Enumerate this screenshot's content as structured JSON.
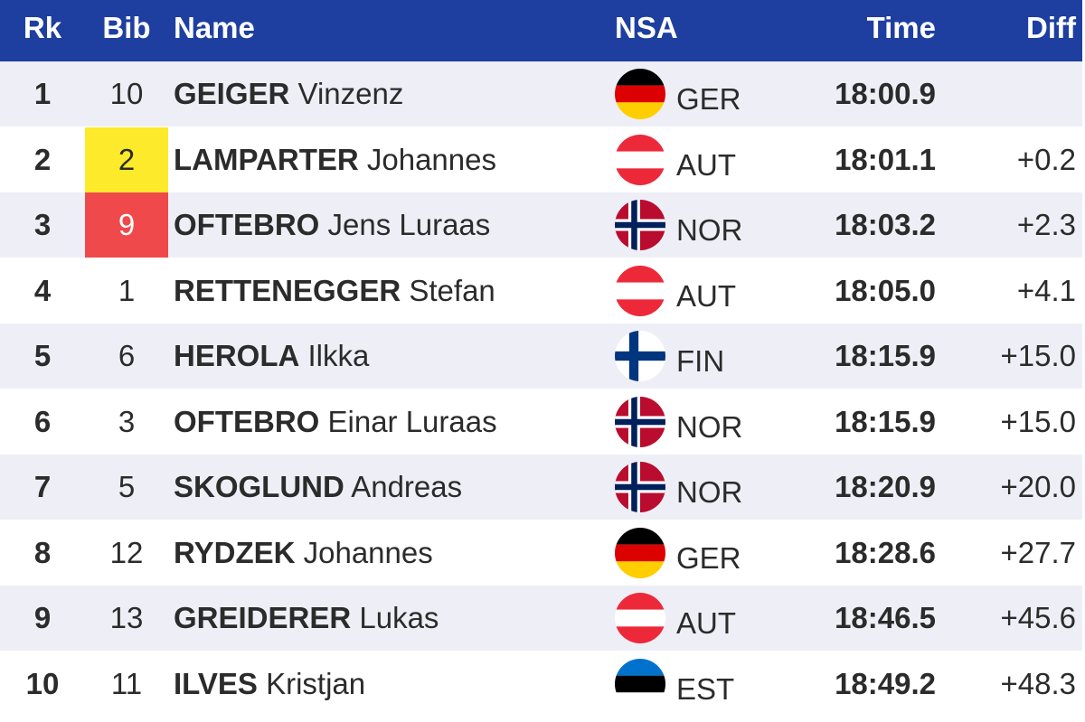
{
  "header": {
    "rk": "Rk",
    "bib": "Bib",
    "name": "Name",
    "nsa": "NSA",
    "time": "Time",
    "diff": "Diff"
  },
  "colors": {
    "header_bg": "#1e3fa0",
    "row_alt_bg": "#eeeff6",
    "bib_yellow": "#fcea2b",
    "bib_red": "#f0494c"
  },
  "rows": [
    {
      "rk": "1",
      "bib": "10",
      "last": "GEIGER",
      "first": "Vinzenz",
      "nsa": "GER",
      "flag": "ger-flag-icon",
      "time": "18:00.9",
      "diff": "",
      "bib_highlight": ""
    },
    {
      "rk": "2",
      "bib": "2",
      "last": "LAMPARTER",
      "first": "Johannes",
      "nsa": "AUT",
      "flag": "aut-flag-icon",
      "time": "18:01.1",
      "diff": "+0.2",
      "bib_highlight": "yellow"
    },
    {
      "rk": "3",
      "bib": "9",
      "last": "OFTEBRO",
      "first": "Jens Luraas",
      "nsa": "NOR",
      "flag": "nor-flag-icon",
      "time": "18:03.2",
      "diff": "+2.3",
      "bib_highlight": "red"
    },
    {
      "rk": "4",
      "bib": "1",
      "last": "RETTENEGGER",
      "first": "Stefan",
      "nsa": "AUT",
      "flag": "aut-flag-icon",
      "time": "18:05.0",
      "diff": "+4.1",
      "bib_highlight": ""
    },
    {
      "rk": "5",
      "bib": "6",
      "last": "HEROLA",
      "first": "Ilkka",
      "nsa": "FIN",
      "flag": "fin-flag-icon",
      "time": "18:15.9",
      "diff": "+15.0",
      "bib_highlight": ""
    },
    {
      "rk": "6",
      "bib": "3",
      "last": "OFTEBRO",
      "first": "Einar Luraas",
      "nsa": "NOR",
      "flag": "nor-flag-icon",
      "time": "18:15.9",
      "diff": "+15.0",
      "bib_highlight": ""
    },
    {
      "rk": "7",
      "bib": "5",
      "last": "SKOGLUND",
      "first": "Andreas",
      "nsa": "NOR",
      "flag": "nor-flag-icon",
      "time": "18:20.9",
      "diff": "+20.0",
      "bib_highlight": ""
    },
    {
      "rk": "8",
      "bib": "12",
      "last": "RYDZEK",
      "first": "Johannes",
      "nsa": "GER",
      "flag": "ger-flag-icon",
      "time": "18:28.6",
      "diff": "+27.7",
      "bib_highlight": ""
    },
    {
      "rk": "9",
      "bib": "13",
      "last": "GREIDERER",
      "first": "Lukas",
      "nsa": "AUT",
      "flag": "aut-flag-icon",
      "time": "18:46.5",
      "diff": "+45.6",
      "bib_highlight": ""
    },
    {
      "rk": "10",
      "bib": "11",
      "last": "ILVES",
      "first": "Kristjan",
      "nsa": "EST",
      "flag": "est-flag-icon",
      "time": "18:49.2",
      "diff": "+48.3",
      "bib_highlight": ""
    }
  ]
}
